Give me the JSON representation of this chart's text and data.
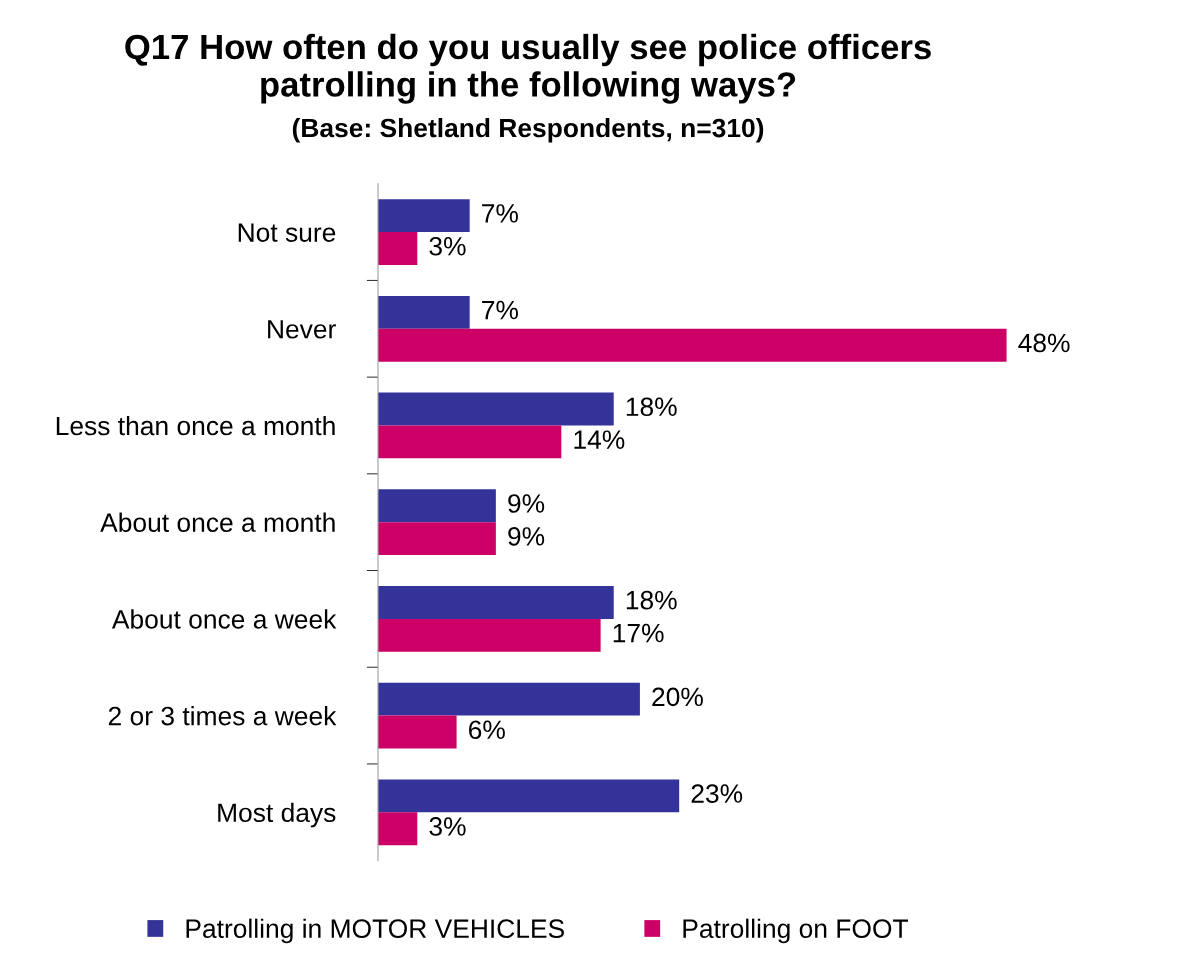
{
  "chart_data": {
    "type": "bar",
    "orientation": "horizontal",
    "title": "Q17 How often do you usually see police officers\npatrolling in the following ways?",
    "subtitle": "(Base: Shetland Respondents, n=310)",
    "categories": [
      "Not sure",
      "Never",
      "Less than once a month",
      "About once a month",
      "About once a week",
      "2 or 3 times a week",
      "Most days"
    ],
    "series": [
      {
        "name": "Patrolling in MOTOR VEHICLES",
        "color": "#333399",
        "values": [
          7,
          7,
          18,
          9,
          18,
          20,
          23
        ],
        "value_labels": [
          "7%",
          "7%",
          "18%",
          "9%",
          "18%",
          "20%",
          "23%"
        ]
      },
      {
        "name": "Patrolling on FOOT",
        "color": "#cc0066",
        "values": [
          3,
          48,
          14,
          9,
          17,
          6,
          3
        ],
        "value_labels": [
          "3%",
          "48%",
          "14%",
          "9%",
          "17%",
          "6%",
          "3%"
        ]
      }
    ],
    "tick_labels": "y",
    "grid": false,
    "legend": "bottom"
  }
}
